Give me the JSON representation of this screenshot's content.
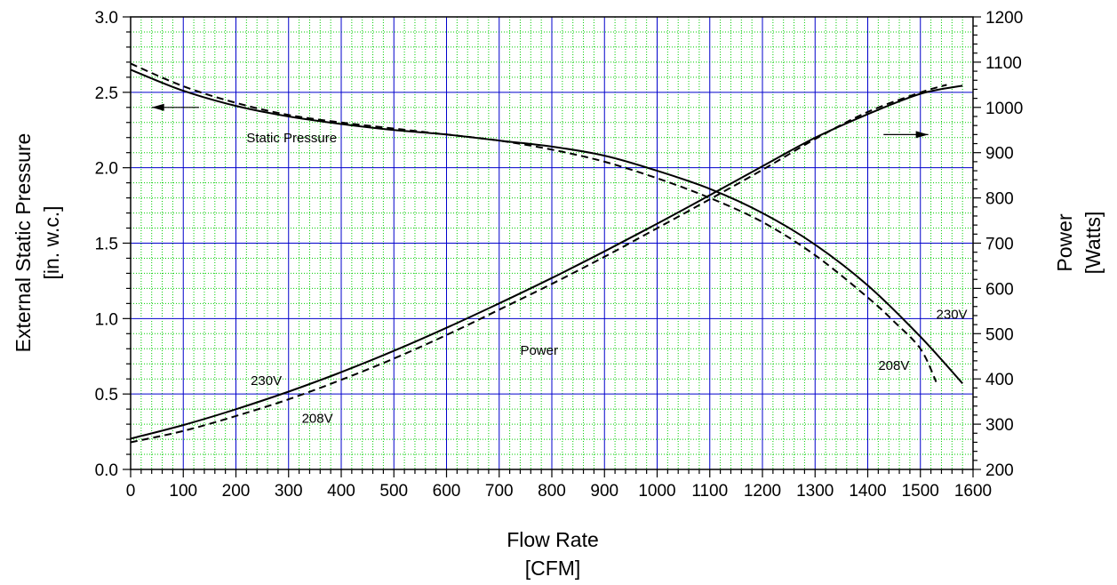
{
  "chart_data": {
    "type": "line",
    "xlabel": [
      "Flow Rate",
      "[CFM]"
    ],
    "ylabel_left": [
      "External Static Pressure",
      "[in. w.c.]"
    ],
    "ylabel_right": [
      "Power",
      "[Watts]"
    ],
    "xlim": [
      0,
      1600
    ],
    "ylim_left": [
      0,
      3.0
    ],
    "ylim_right": [
      200,
      1200
    ],
    "x_ticks": [
      0,
      100,
      200,
      300,
      400,
      500,
      600,
      700,
      800,
      900,
      1000,
      1100,
      1200,
      1300,
      1400,
      1500,
      1600
    ],
    "y_left_ticks": [
      "0.0",
      "0.5",
      "1.0",
      "1.5",
      "2.0",
      "2.5",
      "3.0"
    ],
    "y_right_ticks": [
      "200",
      "300",
      "400",
      "500",
      "600",
      "700",
      "800",
      "900",
      "1000",
      "1100",
      "1200"
    ],
    "grid": "on",
    "series": [
      {
        "axis": "left",
        "style": "solid",
        "x": [
          0,
          100,
          200,
          300,
          400,
          500,
          600,
          700,
          800,
          900,
          1000,
          1100,
          1200,
          1300,
          1400,
          1500,
          1580
        ],
        "y": [
          2.65,
          2.51,
          2.41,
          2.34,
          2.29,
          2.25,
          2.22,
          2.18,
          2.14,
          2.08,
          1.98,
          1.86,
          1.7,
          1.49,
          1.22,
          0.88,
          0.57
        ]
      },
      {
        "axis": "left",
        "style": "dashed",
        "x": [
          0,
          100,
          200,
          300,
          400,
          500,
          600,
          700,
          800,
          900,
          1000,
          1100,
          1200,
          1300,
          1400,
          1450,
          1500,
          1530
        ],
        "y": [
          2.69,
          2.54,
          2.43,
          2.35,
          2.3,
          2.26,
          2.22,
          2.18,
          2.12,
          2.04,
          1.93,
          1.8,
          1.64,
          1.42,
          1.14,
          0.98,
          0.8,
          0.58
        ]
      },
      {
        "axis": "right",
        "style": "solid",
        "x": [
          0,
          100,
          200,
          300,
          400,
          500,
          600,
          700,
          800,
          900,
          1000,
          1100,
          1200,
          1300,
          1400,
          1500,
          1580
        ],
        "y": [
          268,
          298,
          333,
          372,
          415,
          462,
          513,
          567,
          623,
          682,
          743,
          806,
          870,
          933,
          985,
          1030,
          1048
        ]
      },
      {
        "axis": "right",
        "style": "dashed",
        "x": [
          0,
          100,
          200,
          300,
          400,
          500,
          600,
          700,
          800,
          900,
          1000,
          1100,
          1200,
          1300,
          1400,
          1500,
          1550
        ],
        "y": [
          260,
          285,
          318,
          355,
          398,
          445,
          497,
          553,
          610,
          670,
          733,
          797,
          862,
          930,
          990,
          1033,
          1050
        ]
      }
    ],
    "annotations": [
      {
        "text": "Static Pressure",
        "x": 220,
        "y": 2.17
      },
      {
        "text": "Power",
        "x": 740,
        "y": 0.76
      },
      {
        "text": "230V",
        "x": 228,
        "y": 0.56
      },
      {
        "text": "208V",
        "x": 325,
        "y": 0.31
      },
      {
        "text": "230V",
        "x": 1530,
        "y": 1.0
      },
      {
        "text": "208V",
        "x": 1420,
        "y": 0.66
      }
    ],
    "arrows": [
      {
        "axis": "left",
        "direction": "left",
        "x_from": 130,
        "x_to": 40,
        "y": 2.4
      },
      {
        "axis": "right",
        "direction": "right",
        "x_from": 1430,
        "x_to": 1515,
        "y": 940
      }
    ],
    "colors": {
      "major_grid": "#0000cc",
      "minor_grid": "#00cc00",
      "curve": "#000000"
    }
  }
}
